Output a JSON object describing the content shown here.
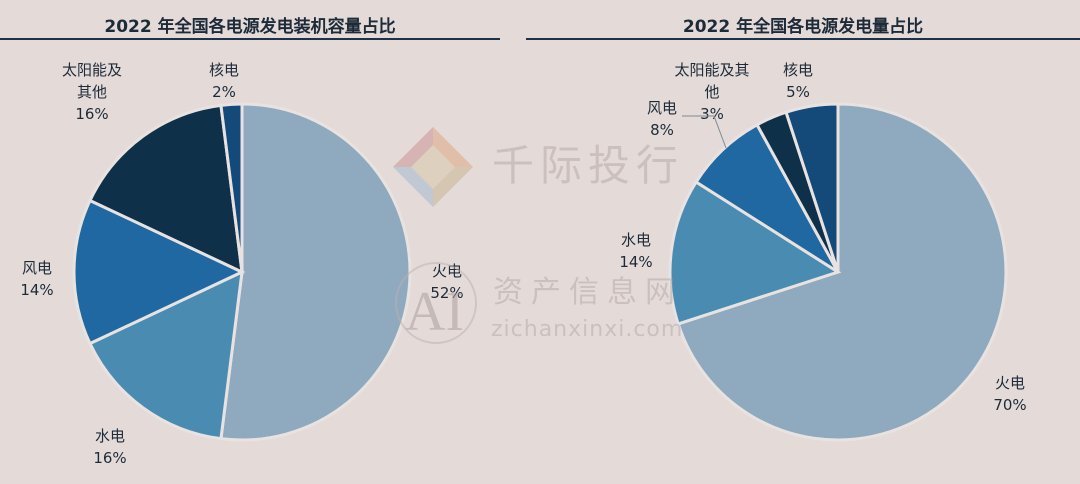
{
  "chart_data": [
    {
      "type": "pie",
      "title": "2022 年全国各电源发电装机容量占比",
      "categories": [
        "火电",
        "水电",
        "风电",
        "太阳能及其他",
        "核电"
      ],
      "values": [
        52,
        16,
        14,
        16,
        2
      ],
      "value_labels": [
        "52%",
        "16%",
        "14%",
        "16%",
        "2%"
      ],
      "label_lines": [
        [
          "火电"
        ],
        [
          "水电"
        ],
        [
          "风电"
        ],
        [
          "太阳能及",
          "其他"
        ],
        [
          "核电"
        ]
      ],
      "colors": [
        "#8fa9be",
        "#4a8cb1",
        "#1f68a1",
        "#0e3048",
        "#134a79"
      ]
    },
    {
      "type": "pie",
      "title": "2022 年全国各电源发电量占比",
      "categories": [
        "火电",
        "水电",
        "风电",
        "太阳能及其他",
        "核电"
      ],
      "values": [
        70,
        14,
        8,
        3,
        5
      ],
      "value_labels": [
        "70%",
        "14%",
        "8%",
        "3%",
        "5%"
      ],
      "label_lines": [
        [
          "火电"
        ],
        [
          "水电"
        ],
        [
          "风电"
        ],
        [
          "太阳能及其",
          "他"
        ],
        [
          "核电"
        ]
      ],
      "colors": [
        "#8fa9be",
        "#4a8cb1",
        "#1f68a1",
        "#0e3048",
        "#134a79"
      ]
    }
  ],
  "watermark": {
    "brand": "千际投行",
    "site_cn": "资产信息网",
    "site_url": "zichanxinxi.com",
    "logo_text": "AI"
  }
}
